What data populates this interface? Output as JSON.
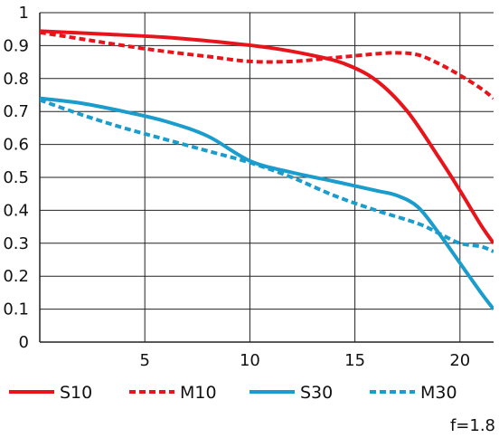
{
  "chart_data": {
    "type": "line",
    "title": "",
    "xlabel": "",
    "ylabel": "",
    "xlim": [
      0,
      21.6
    ],
    "ylim": [
      0,
      1
    ],
    "x_ticks": [
      5,
      10,
      15,
      20
    ],
    "x_tick_labels": [
      "5",
      "10",
      "15",
      "20"
    ],
    "y_ticks": [
      0,
      0.1,
      0.2,
      0.3,
      0.4,
      0.5,
      0.6,
      0.7,
      0.8,
      0.9,
      1
    ],
    "y_tick_labels": [
      "0",
      "0.1",
      "0.2",
      "0.3",
      "0.4",
      "0.5",
      "0.6",
      "0.7",
      "0.8",
      "0.9",
      "1"
    ],
    "grid": true,
    "legend_position": "bottom",
    "annotation": "f=1.8",
    "series": [
      {
        "name": "S10",
        "color": "#e8141b",
        "style": "solid",
        "x": [
          0,
          3,
          6,
          9,
          11,
          13,
          14.5,
          16,
          17.5,
          19,
          20,
          21,
          21.6
        ],
        "y": [
          0.944,
          0.935,
          0.925,
          0.908,
          0.893,
          0.87,
          0.845,
          0.795,
          0.7,
          0.56,
          0.46,
          0.355,
          0.3
        ]
      },
      {
        "name": "M10",
        "color": "#e8141b",
        "style": "dashed",
        "x": [
          0,
          2,
          4,
          6,
          8,
          10,
          12,
          14,
          16,
          17,
          18,
          19,
          20,
          21,
          21.6
        ],
        "y": [
          0.94,
          0.92,
          0.9,
          0.882,
          0.867,
          0.852,
          0.852,
          0.863,
          0.875,
          0.878,
          0.872,
          0.845,
          0.81,
          0.77,
          0.74
        ]
      },
      {
        "name": "S30",
        "color": "#1a9ccc",
        "style": "solid",
        "x": [
          0,
          2,
          4,
          6,
          8,
          10,
          12,
          14,
          16,
          17,
          18,
          19,
          20,
          21,
          21.6
        ],
        "y": [
          0.74,
          0.725,
          0.7,
          0.67,
          0.625,
          0.55,
          0.515,
          0.488,
          0.46,
          0.445,
          0.41,
          0.33,
          0.24,
          0.15,
          0.1
        ]
      },
      {
        "name": "M30",
        "color": "#1a9ccc",
        "style": "dashed",
        "x": [
          0,
          2,
          4,
          6,
          8,
          10,
          12,
          14,
          16,
          18,
          19,
          20,
          21,
          21.6
        ],
        "y": [
          0.735,
          0.69,
          0.65,
          0.615,
          0.58,
          0.545,
          0.5,
          0.445,
          0.4,
          0.36,
          0.33,
          0.3,
          0.29,
          0.275
        ]
      }
    ]
  }
}
